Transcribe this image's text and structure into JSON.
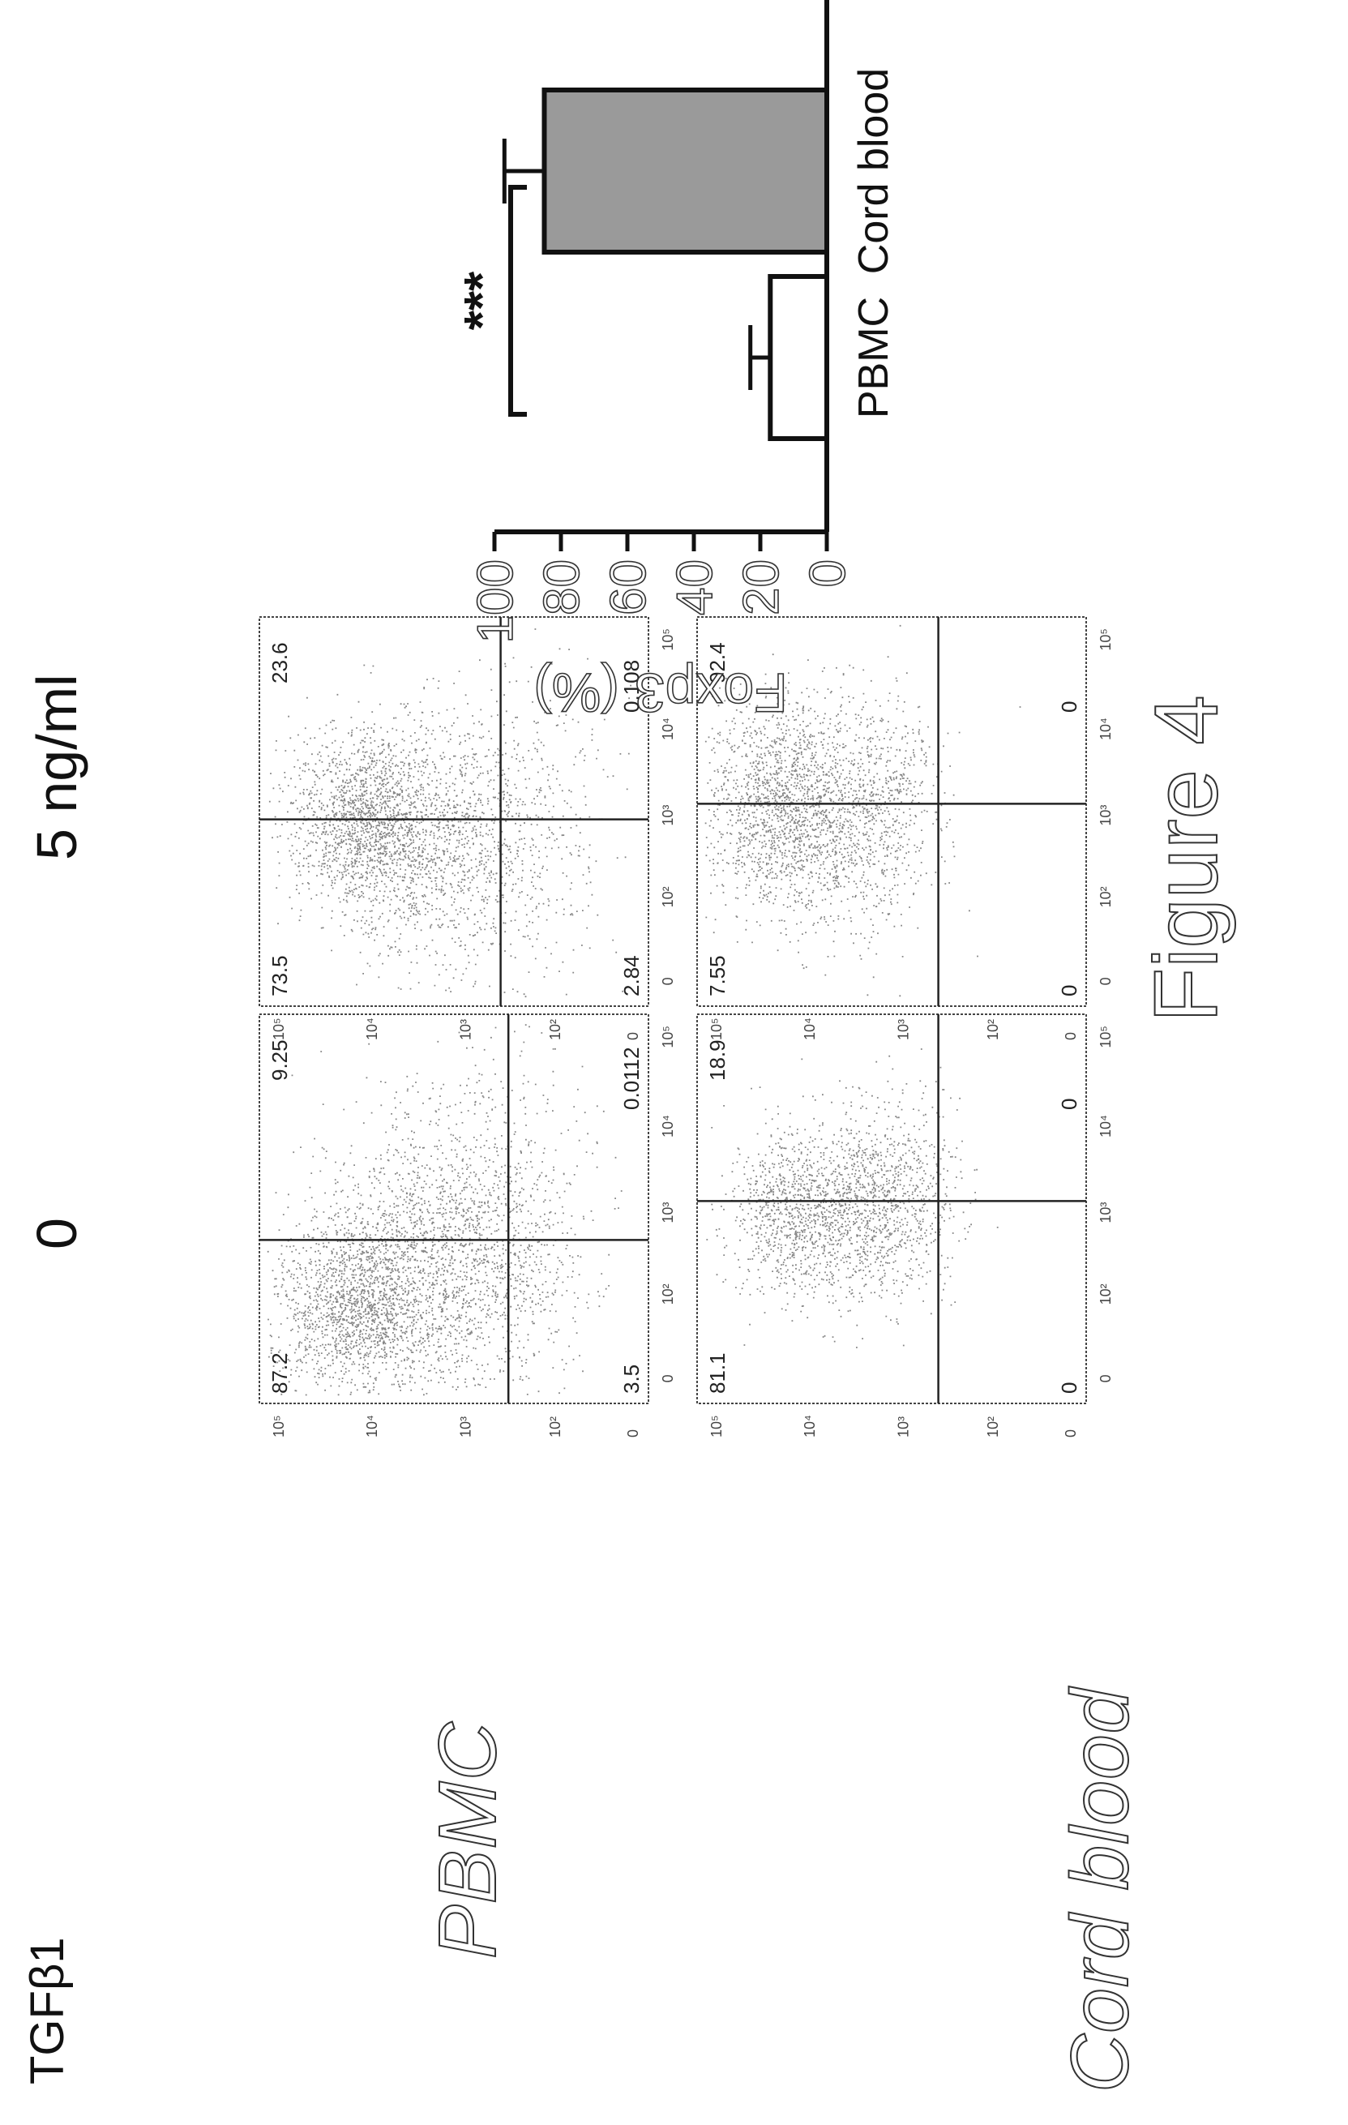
{
  "header": {
    "cytokine": "TGFβ1"
  },
  "columns": [
    "0",
    "5 ng/ml"
  ],
  "rows": [
    "PBMC",
    "Cord blood"
  ],
  "figure_title": "Figure 4",
  "flow_axis": {
    "ticks": [
      "0",
      "10²",
      "10³",
      "10⁴",
      "10⁵"
    ]
  },
  "flow_panels": [
    {
      "row": "PBMC",
      "column": "0",
      "quadrants": {
        "top_left": "87.2",
        "top_right": "9.25",
        "bottom_left": "3.5",
        "bottom_right": "0.0112"
      }
    },
    {
      "row": "PBMC",
      "column": "5 ng/ml",
      "quadrants": {
        "top_left": "73.5",
        "top_right": "23.6",
        "bottom_left": "2.84",
        "bottom_right": "0.108"
      }
    },
    {
      "row": "Cord blood",
      "column": "0",
      "quadrants": {
        "top_left": "81.1",
        "top_right": "18.9",
        "bottom_left": "0",
        "bottom_right": "0"
      }
    },
    {
      "row": "Cord blood",
      "column": "5 ng/ml",
      "quadrants": {
        "top_left": "7.55",
        "top_right": "92.4",
        "bottom_left": "0",
        "bottom_right": "0"
      }
    }
  ],
  "chart_data": {
    "type": "bar",
    "categories": [
      "PBMC",
      "Cord blood"
    ],
    "values": [
      17,
      85
    ],
    "errors": [
      6,
      12
    ],
    "ylabel": "Foxp3 (%)",
    "ylim": [
      0,
      100
    ],
    "yticks": [
      "0",
      "20",
      "40",
      "60",
      "80",
      "100"
    ],
    "significance": "***",
    "bar_fills": [
      "#ffffff",
      "#9a9a9a"
    ],
    "grid": false
  }
}
